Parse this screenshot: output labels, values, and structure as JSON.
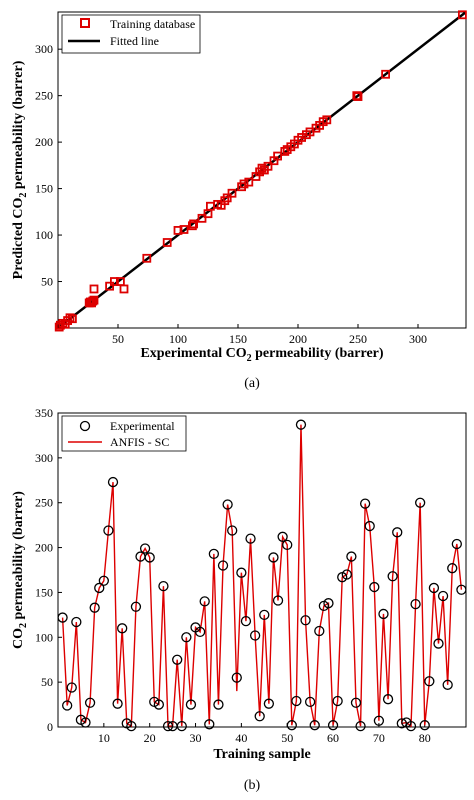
{
  "chart_data": [
    {
      "type": "scatter",
      "panel_label": "(a)",
      "xlabel": "Experimental CO₂ permeability (barrer)",
      "ylabel": "Predicted CO₂ permeability (barrer)",
      "xlim": [
        0,
        340
      ],
      "ylim": [
        0,
        340
      ],
      "xticks": [
        50,
        100,
        150,
        200,
        250,
        300
      ],
      "yticks": [
        50,
        100,
        150,
        200,
        250,
        300
      ],
      "legend": {
        "position": "top-left",
        "entries": [
          "Training database",
          "Fitted line"
        ]
      },
      "series": [
        {
          "name": "Training database",
          "marker": "square",
          "color": "#dd0000",
          "points": [
            [
              1,
              1
            ],
            [
              2,
              3
            ],
            [
              4,
              5
            ],
            [
              6,
              4
            ],
            [
              8,
              8
            ],
            [
              10,
              11
            ],
            [
              12,
              10
            ],
            [
              26,
              27
            ],
            [
              27,
              28
            ],
            [
              28,
              27
            ],
            [
              29,
              29
            ],
            [
              30,
              30
            ],
            [
              30,
              42
            ],
            [
              43,
              45
            ],
            [
              47,
              50
            ],
            [
              52,
              50
            ],
            [
              55,
              42
            ],
            [
              74,
              75
            ],
            [
              91,
              92
            ],
            [
              100,
              105
            ],
            [
              105,
              106
            ],
            [
              112,
              110
            ],
            [
              113,
              112
            ],
            [
              120,
              118
            ],
            [
              125,
              123
            ],
            [
              127,
              131
            ],
            [
              133,
              133
            ],
            [
              136,
              132
            ],
            [
              139,
              137
            ],
            [
              141,
              140
            ],
            [
              145,
              145
            ],
            [
              153,
              152
            ],
            [
              155,
              155
            ],
            [
              159,
              157
            ],
            [
              165,
              163
            ],
            [
              168,
              168
            ],
            [
              170,
              172
            ],
            [
              172,
              170
            ],
            [
              175,
              174
            ],
            [
              180,
              180
            ],
            [
              183,
              185
            ],
            [
              189,
              190
            ],
            [
              191,
              192
            ],
            [
              194,
              195
            ],
            [
              197,
              198
            ],
            [
              200,
              202
            ],
            [
              203,
              205
            ],
            [
              207,
              208
            ],
            [
              210,
              211
            ],
            [
              215,
              215
            ],
            [
              218,
              218
            ],
            [
              221,
              222
            ],
            [
              224,
              224
            ],
            [
              249,
              250
            ],
            [
              250,
              249
            ],
            [
              273,
              273
            ],
            [
              337,
              337
            ]
          ]
        },
        {
          "name": "Fitted line",
          "type": "line",
          "color": "#000000",
          "points": [
            [
              0,
              0
            ],
            [
              340,
              340
            ]
          ]
        }
      ]
    },
    {
      "type": "line",
      "panel_label": "(b)",
      "xlabel": "Training sample",
      "ylabel": "CO₂ permeability (barrer)",
      "xlim": [
        0,
        89
      ],
      "ylim": [
        0,
        350
      ],
      "xticks": [
        10,
        20,
        30,
        40,
        50,
        60,
        70,
        80
      ],
      "yticks": [
        0,
        50,
        100,
        150,
        200,
        250,
        300,
        350
      ],
      "legend": {
        "position": "top-left",
        "entries": [
          "Experimental",
          "ANFIS - SC"
        ]
      },
      "series": [
        {
          "name": "Experimental",
          "marker": "circle",
          "color": "#000000",
          "values": [
            122,
            24,
            44,
            117,
            8,
            5,
            27,
            133,
            155,
            163,
            219,
            273,
            26,
            110,
            4,
            1,
            134,
            190,
            199,
            189,
            28,
            25,
            157,
            1,
            1,
            75,
            1,
            100,
            25,
            111,
            106,
            140,
            3,
            193,
            25,
            180,
            248,
            219,
            55,
            172,
            118,
            210,
            102,
            12,
            125,
            26,
            189,
            141,
            212,
            203,
            2,
            29,
            337,
            119,
            28,
            2,
            107,
            135,
            138,
            2,
            29,
            167,
            170,
            190,
            27,
            1,
            249,
            224,
            156,
            7,
            126,
            31,
            168,
            217,
            4,
            5,
            1,
            137,
            250,
            2,
            51,
            155,
            93,
            146,
            47,
            177,
            204,
            153
          ]
        },
        {
          "name": "ANFIS - SC",
          "color": "#dd0000",
          "values": [
            122,
            24,
            44,
            117,
            8,
            5,
            27,
            133,
            155,
            163,
            219,
            273,
            26,
            110,
            4,
            1,
            134,
            190,
            199,
            189,
            28,
            25,
            157,
            1,
            1,
            75,
            1,
            100,
            25,
            111,
            106,
            140,
            3,
            193,
            25,
            180,
            248,
            219,
            40,
            172,
            118,
            210,
            102,
            12,
            125,
            26,
            189,
            141,
            212,
            203,
            2,
            29,
            337,
            119,
            28,
            2,
            107,
            135,
            138,
            2,
            29,
            167,
            170,
            190,
            27,
            1,
            249,
            224,
            156,
            7,
            126,
            31,
            168,
            217,
            4,
            5,
            1,
            137,
            250,
            2,
            51,
            155,
            93,
            146,
            47,
            177,
            204,
            153
          ]
        }
      ]
    }
  ]
}
